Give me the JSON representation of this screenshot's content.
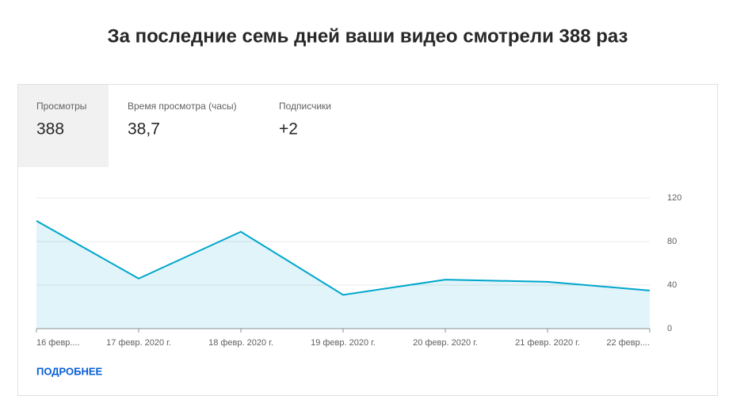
{
  "title": "За последние семь дней ваши видео смотрели 388 раз",
  "metrics": [
    {
      "label": "Просмотры",
      "value": "388"
    },
    {
      "label": "Время просмотра (часы)",
      "value": "38,7"
    },
    {
      "label": "Подписчики",
      "value": "+2"
    }
  ],
  "chart_data": {
    "type": "area",
    "categories": [
      "16 февр....",
      "17 февр. 2020 г.",
      "18 февр. 2020 г.",
      "19 февр. 2020 г.",
      "20 февр. 2020 г.",
      "21 февр. 2020 г.",
      "22 февр...."
    ],
    "values": [
      99,
      46,
      89,
      31,
      45,
      43,
      35
    ],
    "color": "#00a6cc",
    "ylim": [
      0,
      120
    ],
    "yticks": [
      0,
      40,
      80,
      120
    ],
    "grid": true
  },
  "link": "ПОДРОБНЕЕ"
}
